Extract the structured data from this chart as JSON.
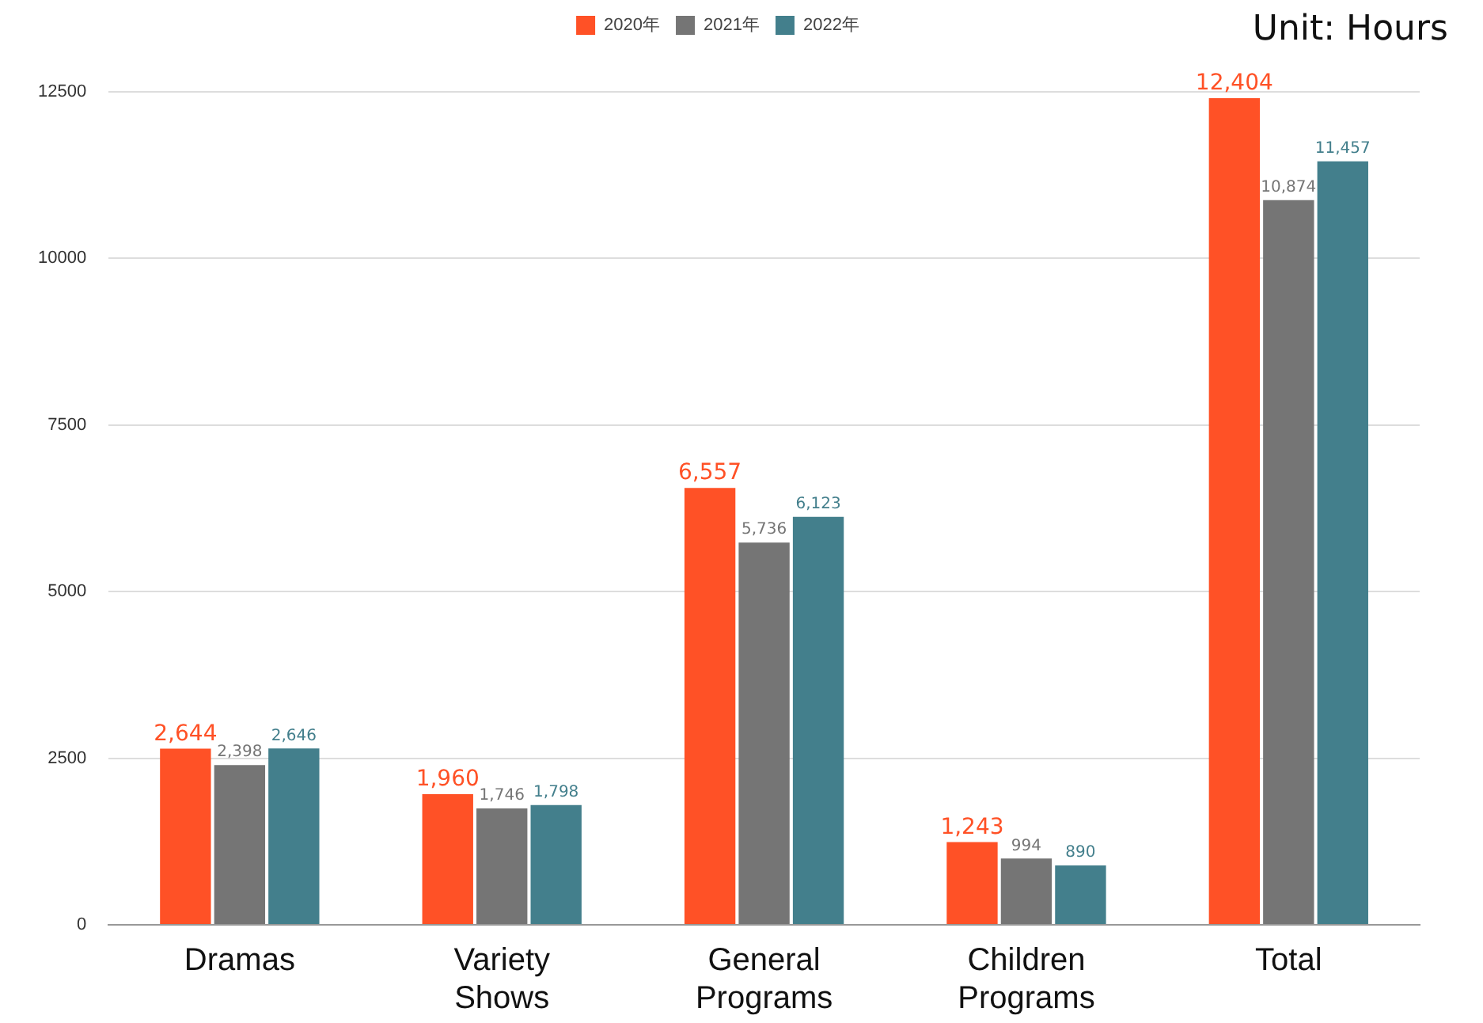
{
  "chart_data": {
    "type": "bar",
    "annotations": [
      "Unit: Hours"
    ],
    "categories": [
      "Dramas",
      "Variety Shows",
      "General Programs",
      "Children Programs",
      "Total"
    ],
    "series": [
      {
        "name": "2020年",
        "color": "#ff5126",
        "values": [
          2644,
          1960,
          6557,
          1243,
          12404
        ],
        "value_labels": [
          "2,644",
          "1,960",
          "6,557",
          "1,243",
          "12,404"
        ]
      },
      {
        "name": "2021年",
        "color": "#757575",
        "values": [
          2398,
          1746,
          5736,
          994,
          10874
        ],
        "value_labels": [
          "2,398",
          "1,746",
          "5,736",
          "994",
          "10,874"
        ]
      },
      {
        "name": "2022年",
        "color": "#437f8c",
        "values": [
          2646,
          1798,
          6123,
          890,
          11457
        ],
        "value_labels": [
          "2,646",
          "1,798",
          "6,123",
          "890",
          "11,457"
        ]
      }
    ],
    "ylim": [
      0,
      12500
    ],
    "yticks": [
      0,
      2500,
      5000,
      7500,
      10000,
      12500
    ],
    "grid": "y",
    "legend": "top"
  }
}
